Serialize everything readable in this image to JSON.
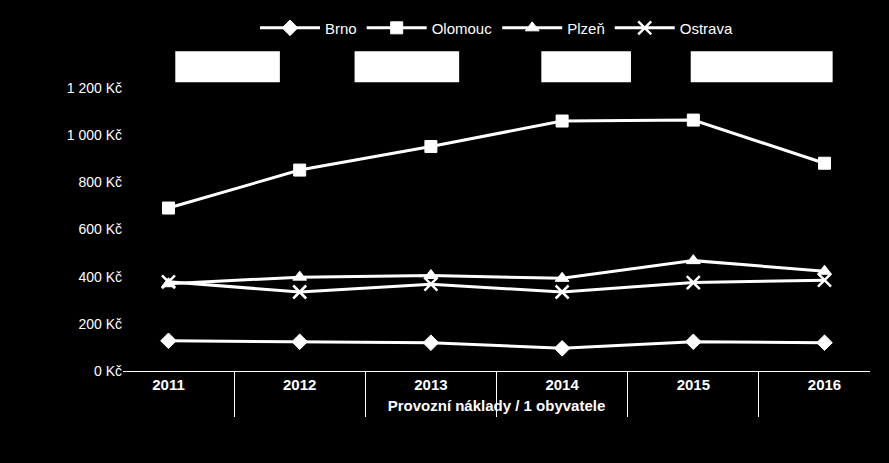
{
  "chart_data": {
    "type": "line",
    "x_label": "Provozní náklady / 1 obyvatele",
    "categories": [
      "2011",
      "2012",
      "2013",
      "2014",
      "2015",
      "2016"
    ],
    "series": [
      {
        "name": "Brno",
        "color": "#ffffff",
        "marker": "diamond",
        "values": [
          128,
          124,
          120,
          96,
          124,
          120
        ]
      },
      {
        "name": "Olomouc",
        "color": "#ffffff",
        "marker": "square",
        "values": [
          691,
          852,
          952,
          1060,
          1064,
          881
        ]
      },
      {
        "name": "Plzeň",
        "color": "#ffffff",
        "marker": "triangle-up",
        "values": [
          370,
          398,
          405,
          393,
          468,
          423
        ]
      },
      {
        "name": "Ostrava",
        "color": "#ffffff",
        "marker": "x",
        "values": [
          378,
          335,
          368,
          335,
          375,
          385
        ]
      }
    ],
    "ylim": [
      0,
      1200
    ],
    "yticks": [
      {
        "value": 0,
        "label": "0 Kč"
      },
      {
        "value": 200,
        "label": "200 Kč"
      },
      {
        "value": 400,
        "label": "400 Kč"
      },
      {
        "value": 600,
        "label": "600 Kč"
      },
      {
        "value": 800,
        "label": "800 Kč"
      },
      {
        "value": 1000,
        "label": "1 000 Kč"
      },
      {
        "value": 1200,
        "label": "1 200 Kč"
      }
    ],
    "grid": false,
    "legend": "top"
  }
}
